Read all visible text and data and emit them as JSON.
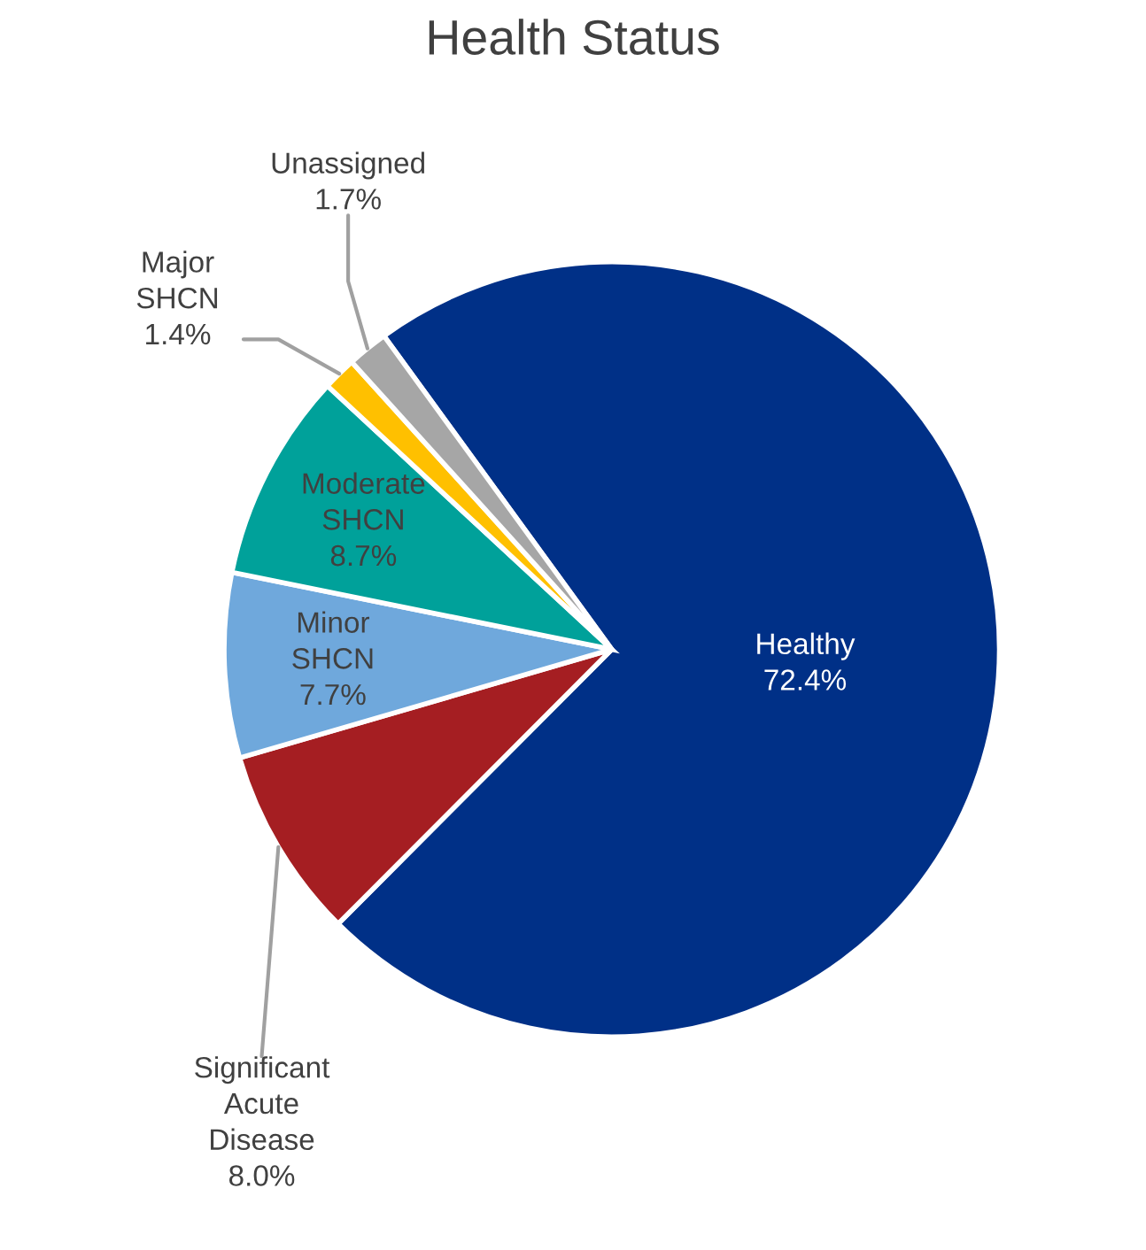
{
  "chart_data": {
    "type": "pie",
    "title": "Health Status",
    "categories": [
      "Healthy",
      "Significant Acute Disease",
      "Minor SHCN",
      "Moderate SHCN",
      "Major SHCN",
      "Unassigned"
    ],
    "values": [
      72.4,
      8.0,
      7.7,
      8.7,
      1.4,
      1.7
    ],
    "value_labels": [
      "72.4%",
      "8.0%",
      "7.7%",
      "8.7%",
      "1.4%",
      "1.7%"
    ],
    "colors": [
      "#003087",
      "#a51e22",
      "#6fa8dc",
      "#00a19a",
      "#ffc000",
      "#a6a6a6"
    ],
    "legend": false
  }
}
